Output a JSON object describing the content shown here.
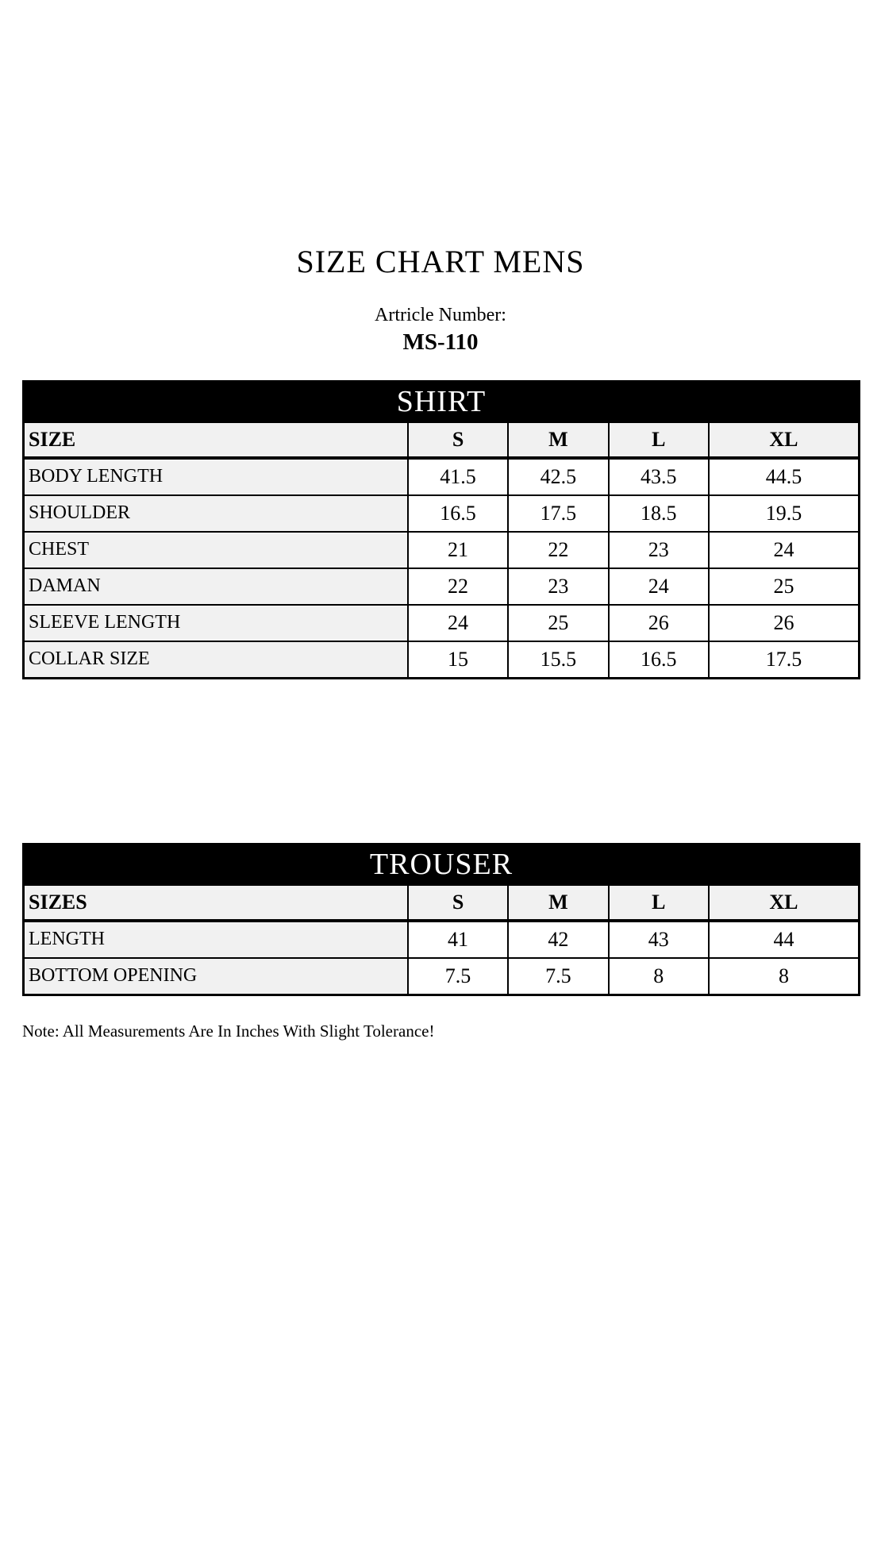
{
  "page": {
    "title": "SIZE CHART MENS",
    "article_label": "Artricle Number:",
    "article_number": "MS-110",
    "note": "Note: All Measurements Are In Inches With Slight Tolerance!"
  },
  "tables": [
    {
      "title": "SHIRT",
      "header": [
        "SIZE",
        "S",
        "M",
        "L",
        "XL"
      ],
      "rows": [
        {
          "label": "BODY LENGTH",
          "values": [
            "41.5",
            "42.5",
            "43.5",
            "44.5"
          ]
        },
        {
          "label": "SHOULDER",
          "values": [
            "16.5",
            "17.5",
            "18.5",
            "19.5"
          ]
        },
        {
          "label": "CHEST",
          "values": [
            "21",
            "22",
            "23",
            "24"
          ]
        },
        {
          "label": "DAMAN",
          "values": [
            "22",
            "23",
            "24",
            "25"
          ]
        },
        {
          "label": "SLEEVE LENGTH",
          "values": [
            "24",
            "25",
            "26",
            "26"
          ]
        },
        {
          "label": "COLLAR SIZE",
          "values": [
            "15",
            "15.5",
            "16.5",
            "17.5"
          ]
        }
      ]
    },
    {
      "title": "TROUSER",
      "header": [
        "SIZES",
        "S",
        "M",
        "L",
        "XL"
      ],
      "rows": [
        {
          "label": "LENGTH",
          "values": [
            "41",
            "42",
            "43",
            "44"
          ]
        },
        {
          "label": "BOTTOM OPENING",
          "values": [
            "7.5",
            "7.5",
            "8",
            "8"
          ]
        }
      ]
    }
  ],
  "colors": {
    "header_bar_bg": "#000000",
    "header_bar_text": "#ffffff",
    "header_row_bg": "#f1f1f1",
    "label_cell_bg": "#f1f1f1",
    "value_cell_bg": "#ffffff",
    "border": "#000000",
    "text": "#000000"
  }
}
